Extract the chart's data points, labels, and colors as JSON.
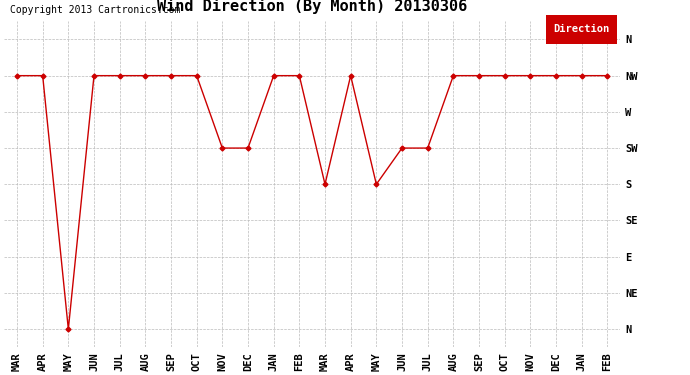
{
  "title": "Wind Direction (By Month) 20130306",
  "copyright": "Copyright 2013 Cartronics.com",
  "legend_label": "Direction",
  "legend_bg": "#cc0000",
  "legend_fg": "#ffffff",
  "x_labels": [
    "MAR",
    "APR",
    "MAY",
    "JUN",
    "JUL",
    "AUG",
    "SEP",
    "OCT",
    "NOV",
    "DEC",
    "JAN",
    "FEB",
    "MAR",
    "APR",
    "MAY",
    "JUN",
    "JUL",
    "AUG",
    "SEP",
    "OCT",
    "NOV",
    "DEC",
    "JAN",
    "FEB"
  ],
  "y_labels_top_to_bottom": [
    "N",
    "NW",
    "W",
    "SW",
    "S",
    "SE",
    "E",
    "NE",
    "N"
  ],
  "line_color": "#cc0000",
  "marker": "D",
  "marker_size": 2.5,
  "background_color": "#ffffff",
  "grid_color": "#bbbbbb",
  "title_fontsize": 11,
  "axis_fontsize": 7.5,
  "copyright_fontsize": 7,
  "data_y": [
    7,
    7,
    0,
    7,
    7,
    7,
    7,
    7,
    5,
    5,
    7,
    7,
    4,
    7,
    4,
    5,
    5,
    7,
    7,
    7,
    7,
    7,
    7,
    7
  ]
}
